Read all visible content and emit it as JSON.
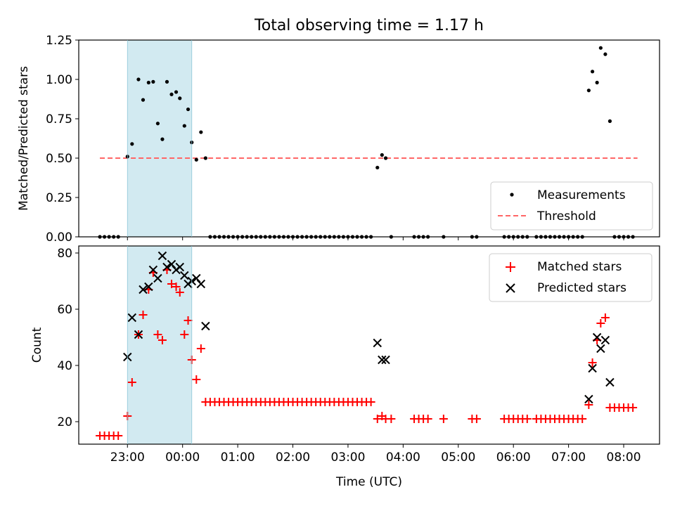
{
  "figure": {
    "title": "Total observing time = 1.17 h",
    "xlabel": "Time (UTC)",
    "x_ticks": [
      "23:00",
      "00:00",
      "01:00",
      "02:00",
      "03:00",
      "04:00",
      "05:00",
      "06:00",
      "07:00",
      "08:00"
    ],
    "x_range": [
      "22:07",
      "08:39"
    ],
    "highlight_span": [
      "23:00",
      "00:10"
    ],
    "colors": {
      "highlight": "#add8e6",
      "threshold": "#ff6666",
      "matched": "#ff0000",
      "predicted": "#000000",
      "measurement": "#000000"
    }
  },
  "chart_data": [
    {
      "type": "scatter",
      "name": "ratio-panel",
      "ylabel": "Matched/Predicted stars",
      "ylim": [
        0,
        1.25
      ],
      "y_ticks": [
        "0.00",
        "0.25",
        "0.50",
        "0.75",
        "1.00",
        "1.25"
      ],
      "legend": {
        "position": "lower-right",
        "entries": [
          "Measurements",
          "Threshold"
        ]
      },
      "threshold": {
        "value": 0.5,
        "x_start": "22:30",
        "x_end": "08:15"
      },
      "points": [
        [
          "22:30",
          0
        ],
        [
          "22:35",
          0
        ],
        [
          "22:40",
          0
        ],
        [
          "22:45",
          0
        ],
        [
          "22:50",
          0
        ],
        [
          "23:00",
          0.51
        ],
        [
          "23:05",
          0.59
        ],
        [
          "23:12",
          1.0
        ],
        [
          "23:17",
          0.87
        ],
        [
          "23:23",
          0.98
        ],
        [
          "23:28",
          0.985
        ],
        [
          "23:33",
          0.72
        ],
        [
          "23:38",
          0.62
        ],
        [
          "23:43",
          0.985
        ],
        [
          "23:48",
          0.905
        ],
        [
          "23:53",
          0.92
        ],
        [
          "23:57",
          0.88
        ],
        [
          "00:02",
          0.705
        ],
        [
          "00:06",
          0.81
        ],
        [
          "00:10",
          0.6
        ],
        [
          "00:15",
          0.49
        ],
        [
          "00:20",
          0.665
        ],
        [
          "00:25",
          0.5
        ],
        [
          "00:30",
          0
        ],
        [
          "00:35",
          0
        ],
        [
          "00:40",
          0
        ],
        [
          "00:45",
          0
        ],
        [
          "00:50",
          0
        ],
        [
          "00:55",
          0
        ],
        [
          "01:00",
          0
        ],
        [
          "01:05",
          0
        ],
        [
          "01:10",
          0
        ],
        [
          "01:15",
          0
        ],
        [
          "01:20",
          0
        ],
        [
          "01:25",
          0
        ],
        [
          "01:30",
          0
        ],
        [
          "01:35",
          0
        ],
        [
          "01:40",
          0
        ],
        [
          "01:45",
          0
        ],
        [
          "01:50",
          0
        ],
        [
          "01:55",
          0
        ],
        [
          "02:00",
          0
        ],
        [
          "02:05",
          0
        ],
        [
          "02:10",
          0
        ],
        [
          "02:15",
          0
        ],
        [
          "02:20",
          0
        ],
        [
          "02:25",
          0
        ],
        [
          "02:30",
          0
        ],
        [
          "02:35",
          0
        ],
        [
          "02:40",
          0
        ],
        [
          "02:45",
          0
        ],
        [
          "02:50",
          0
        ],
        [
          "02:55",
          0
        ],
        [
          "03:00",
          0
        ],
        [
          "03:05",
          0
        ],
        [
          "03:10",
          0
        ],
        [
          "03:15",
          0
        ],
        [
          "03:20",
          0
        ],
        [
          "03:25",
          0
        ],
        [
          "03:32",
          0.44
        ],
        [
          "03:37",
          0.52
        ],
        [
          "03:41",
          0.5
        ],
        [
          "03:47",
          0
        ],
        [
          "04:12",
          0
        ],
        [
          "04:17",
          0
        ],
        [
          "04:22",
          0
        ],
        [
          "04:27",
          0
        ],
        [
          "04:44",
          0
        ],
        [
          "05:15",
          0
        ],
        [
          "05:20",
          0
        ],
        [
          "05:50",
          0
        ],
        [
          "05:55",
          0
        ],
        [
          "06:00",
          0
        ],
        [
          "06:05",
          0
        ],
        [
          "06:10",
          0
        ],
        [
          "06:15",
          0
        ],
        [
          "06:25",
          0
        ],
        [
          "06:30",
          0
        ],
        [
          "06:35",
          0
        ],
        [
          "06:40",
          0
        ],
        [
          "06:45",
          0
        ],
        [
          "06:50",
          0
        ],
        [
          "06:55",
          0
        ],
        [
          "07:00",
          0
        ],
        [
          "07:05",
          0
        ],
        [
          "07:10",
          0
        ],
        [
          "07:15",
          0
        ],
        [
          "07:22",
          0.93
        ],
        [
          "07:26",
          1.05
        ],
        [
          "07:31",
          0.98
        ],
        [
          "07:35",
          1.2
        ],
        [
          "07:40",
          1.16
        ],
        [
          "07:45",
          0.735
        ],
        [
          "07:50",
          0
        ],
        [
          "07:55",
          0
        ],
        [
          "08:00",
          0
        ],
        [
          "08:05",
          0
        ],
        [
          "08:10",
          0
        ]
      ]
    },
    {
      "type": "scatter",
      "name": "count-panel",
      "ylabel": "Count",
      "ylim": [
        12,
        82.5
      ],
      "y_ticks": [
        "20",
        "40",
        "60",
        "80"
      ],
      "legend": {
        "position": "upper-right",
        "entries": [
          "Matched stars",
          "Predicted stars"
        ]
      },
      "series": [
        {
          "name": "Matched stars",
          "marker": "plus",
          "points": [
            [
              "22:30",
              15
            ],
            [
              "22:35",
              15
            ],
            [
              "22:40",
              15
            ],
            [
              "22:45",
              15
            ],
            [
              "22:50",
              15
            ],
            [
              "23:00",
              22
            ],
            [
              "23:05",
              34
            ],
            [
              "23:12",
              51
            ],
            [
              "23:17",
              58
            ],
            [
              "23:23",
              67
            ],
            [
              "23:28",
              73
            ],
            [
              "23:33",
              51
            ],
            [
              "23:38",
              49
            ],
            [
              "23:43",
              74
            ],
            [
              "23:48",
              69
            ],
            [
              "23:53",
              68
            ],
            [
              "23:57",
              66
            ],
            [
              "00:02",
              51
            ],
            [
              "00:06",
              56
            ],
            [
              "00:10",
              42
            ],
            [
              "00:15",
              35
            ],
            [
              "00:20",
              46
            ],
            [
              "00:25",
              27
            ],
            [
              "00:30",
              27
            ],
            [
              "00:35",
              27
            ],
            [
              "00:40",
              27
            ],
            [
              "00:45",
              27
            ],
            [
              "00:50",
              27
            ],
            [
              "00:55",
              27
            ],
            [
              "01:00",
              27
            ],
            [
              "01:05",
              27
            ],
            [
              "01:10",
              27
            ],
            [
              "01:15",
              27
            ],
            [
              "01:20",
              27
            ],
            [
              "01:25",
              27
            ],
            [
              "01:30",
              27
            ],
            [
              "01:35",
              27
            ],
            [
              "01:40",
              27
            ],
            [
              "01:45",
              27
            ],
            [
              "01:50",
              27
            ],
            [
              "01:55",
              27
            ],
            [
              "02:00",
              27
            ],
            [
              "02:05",
              27
            ],
            [
              "02:10",
              27
            ],
            [
              "02:15",
              27
            ],
            [
              "02:20",
              27
            ],
            [
              "02:25",
              27
            ],
            [
              "02:30",
              27
            ],
            [
              "02:35",
              27
            ],
            [
              "02:40",
              27
            ],
            [
              "02:45",
              27
            ],
            [
              "02:50",
              27
            ],
            [
              "02:55",
              27
            ],
            [
              "03:00",
              27
            ],
            [
              "03:05",
              27
            ],
            [
              "03:10",
              27
            ],
            [
              "03:15",
              27
            ],
            [
              "03:20",
              27
            ],
            [
              "03:25",
              27
            ],
            [
              "03:32",
              21
            ],
            [
              "03:37",
              22
            ],
            [
              "03:41",
              21
            ],
            [
              "03:47",
              21
            ],
            [
              "04:12",
              21
            ],
            [
              "04:17",
              21
            ],
            [
              "04:22",
              21
            ],
            [
              "04:27",
              21
            ],
            [
              "04:44",
              21
            ],
            [
              "05:15",
              21
            ],
            [
              "05:20",
              21
            ],
            [
              "05:50",
              21
            ],
            [
              "05:55",
              21
            ],
            [
              "06:00",
              21
            ],
            [
              "06:05",
              21
            ],
            [
              "06:10",
              21
            ],
            [
              "06:15",
              21
            ],
            [
              "06:25",
              21
            ],
            [
              "06:30",
              21
            ],
            [
              "06:35",
              21
            ],
            [
              "06:40",
              21
            ],
            [
              "06:45",
              21
            ],
            [
              "06:50",
              21
            ],
            [
              "06:55",
              21
            ],
            [
              "07:00",
              21
            ],
            [
              "07:05",
              21
            ],
            [
              "07:10",
              21
            ],
            [
              "07:15",
              21
            ],
            [
              "07:22",
              26
            ],
            [
              "07:26",
              41
            ],
            [
              "07:31",
              49
            ],
            [
              "07:35",
              55
            ],
            [
              "07:40",
              57
            ],
            [
              "07:45",
              25
            ],
            [
              "07:50",
              25
            ],
            [
              "07:55",
              25
            ],
            [
              "08:00",
              25
            ],
            [
              "08:05",
              25
            ],
            [
              "08:10",
              25
            ]
          ]
        },
        {
          "name": "Predicted stars",
          "marker": "x",
          "points": [
            [
              "23:00",
              43
            ],
            [
              "23:05",
              57
            ],
            [
              "23:12",
              51
            ],
            [
              "23:17",
              67
            ],
            [
              "23:23",
              68
            ],
            [
              "23:28",
              74
            ],
            [
              "23:33",
              71
            ],
            [
              "23:38",
              79
            ],
            [
              "23:43",
              75
            ],
            [
              "23:48",
              76
            ],
            [
              "23:53",
              74
            ],
            [
              "23:57",
              75
            ],
            [
              "00:02",
              72
            ],
            [
              "00:06",
              69
            ],
            [
              "00:10",
              70
            ],
            [
              "00:15",
              71
            ],
            [
              "00:20",
              69
            ],
            [
              "00:25",
              54
            ],
            [
              "03:32",
              48
            ],
            [
              "03:37",
              42
            ],
            [
              "03:41",
              42
            ],
            [
              "07:22",
              28
            ],
            [
              "07:26",
              39
            ],
            [
              "07:31",
              50
            ],
            [
              "07:35",
              46
            ],
            [
              "07:40",
              49
            ],
            [
              "07:45",
              34
            ]
          ]
        }
      ]
    }
  ]
}
